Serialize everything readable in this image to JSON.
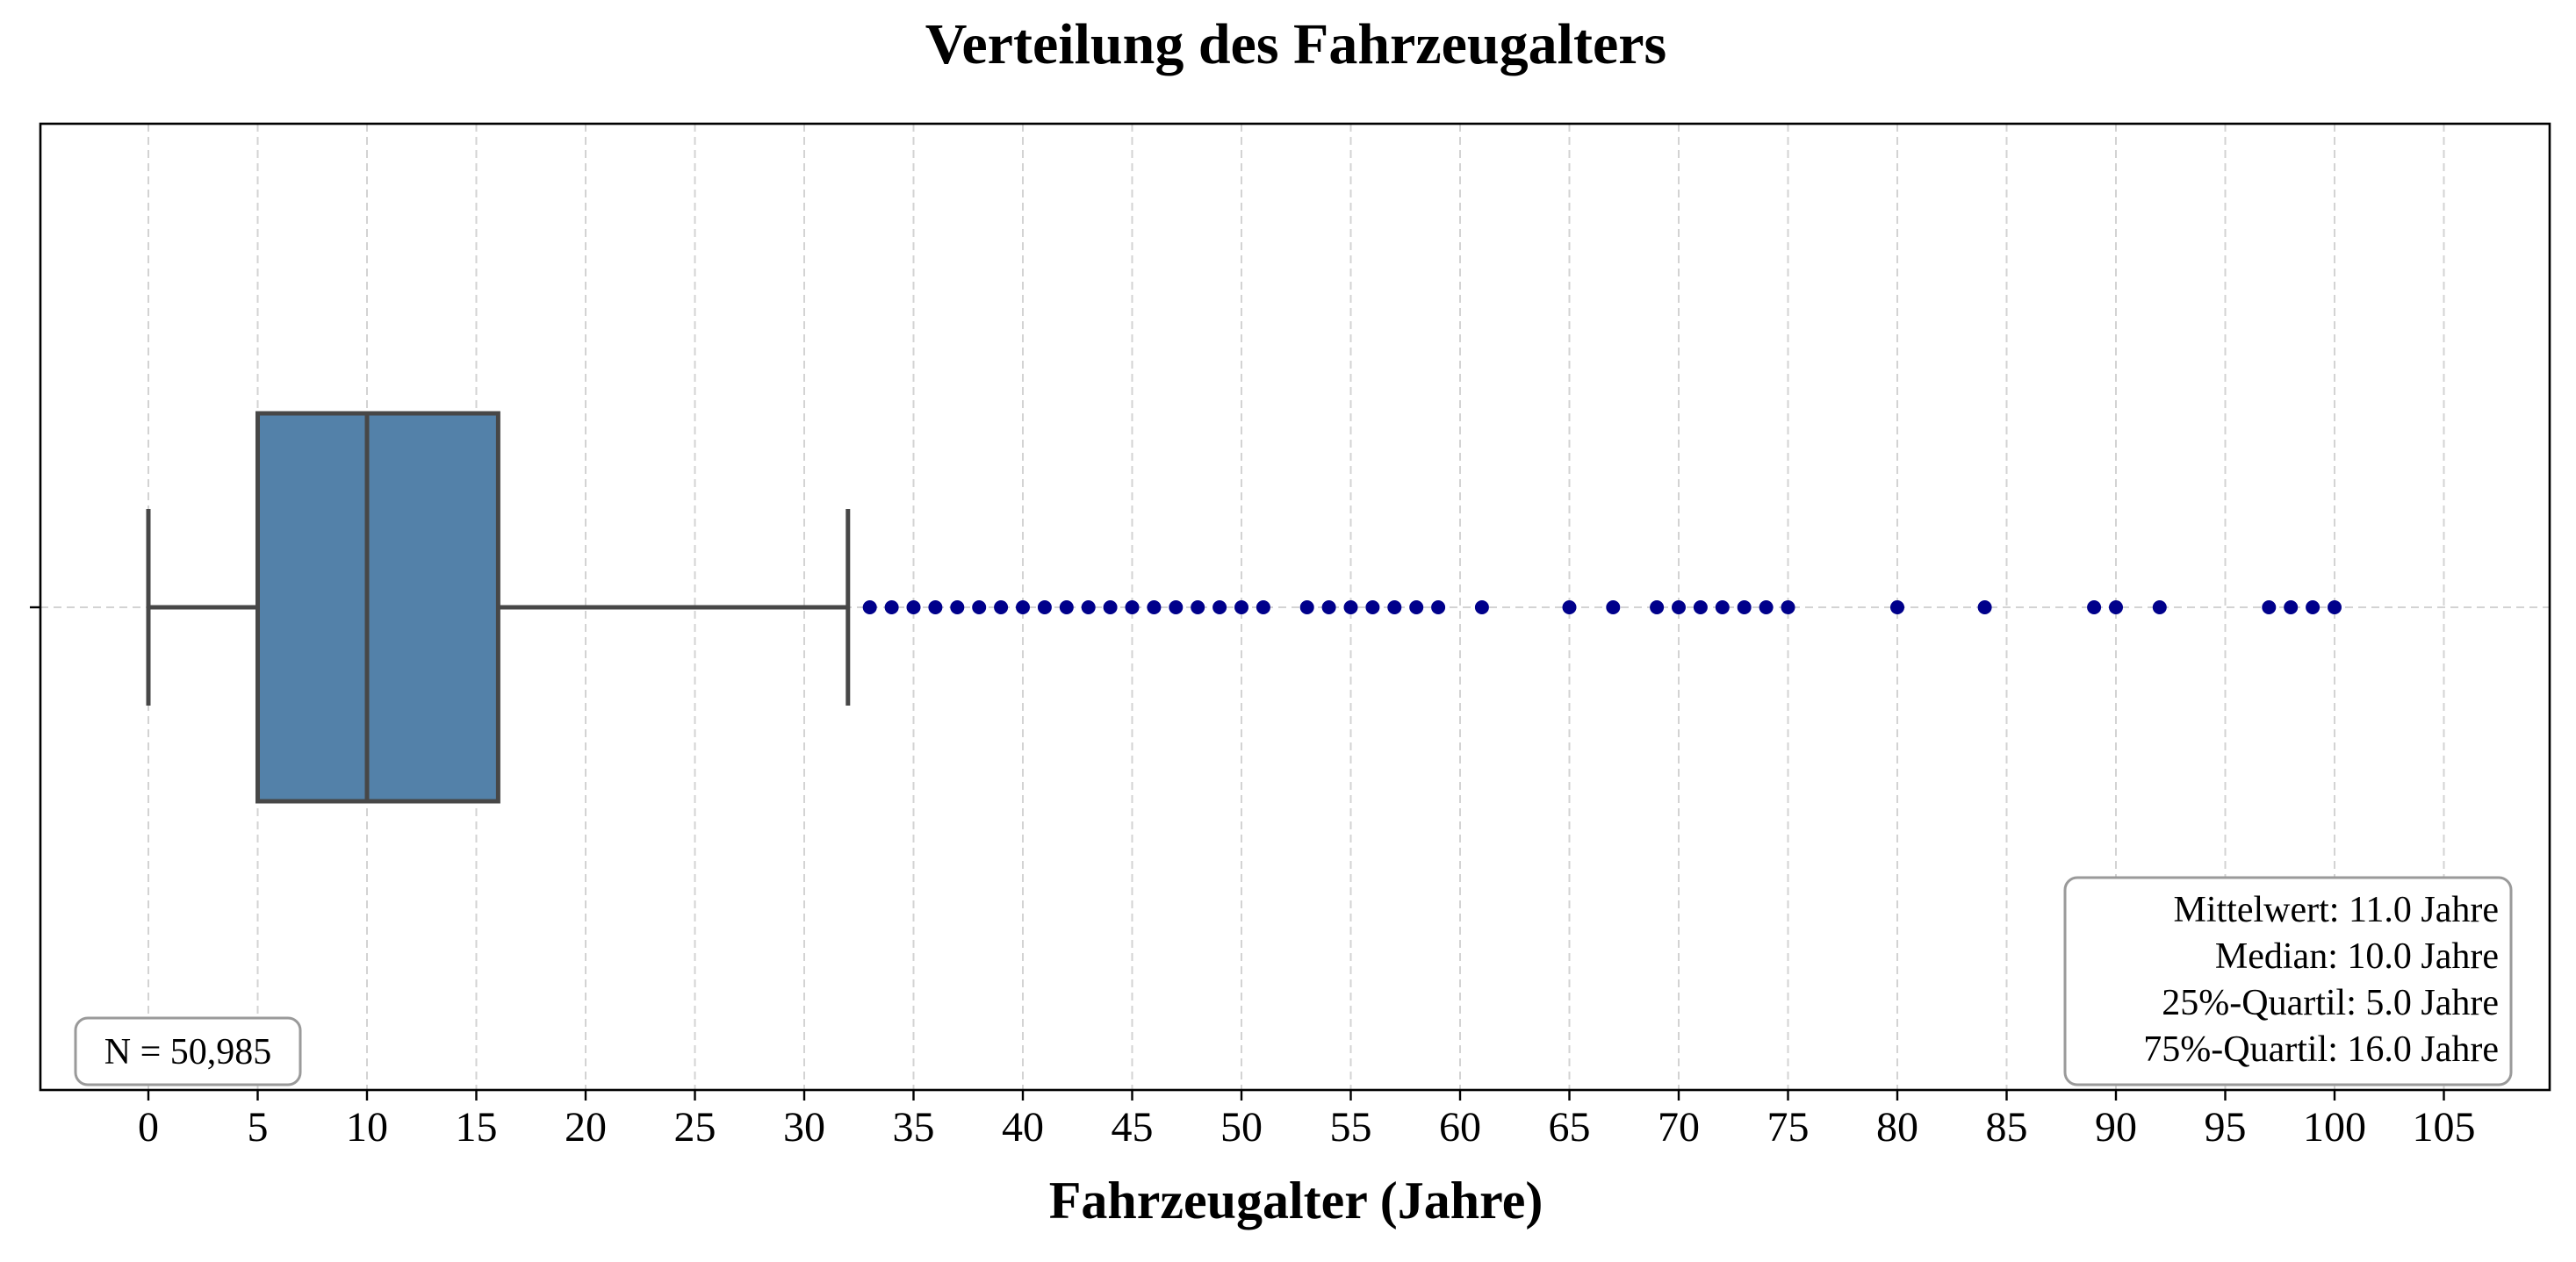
{
  "chart_data": {
    "type": "box",
    "title": "Verteilung des Fahrzeugalters",
    "xlabel": "Fahrzeugalter (Jahre)",
    "ylabel": "",
    "xlim": [
      -5,
      110
    ],
    "x_ticks": [
      0,
      5,
      10,
      15,
      20,
      25,
      30,
      35,
      40,
      45,
      50,
      55,
      60,
      65,
      70,
      75,
      80,
      85,
      90,
      95,
      100,
      105
    ],
    "grid": "vertical dashed",
    "orientation": "horizontal",
    "box": {
      "whisker_low": 0,
      "q1": 5,
      "median": 10,
      "q3": 16,
      "whisker_high": 32
    },
    "outliers": [
      33,
      34,
      35,
      36,
      37,
      38,
      39,
      40,
      41,
      42,
      43,
      44,
      45,
      46,
      47,
      48,
      49,
      50,
      51,
      53,
      54,
      55,
      56,
      57,
      58,
      59,
      61,
      65,
      67,
      69,
      70,
      71,
      72,
      73,
      74,
      75,
      80,
      84,
      89,
      90,
      92,
      97,
      98,
      99,
      100
    ],
    "colors": {
      "box_fill": "#5381a9",
      "box_line": "#474747",
      "outlier": "#00008b",
      "grid": "#d3d3d3"
    },
    "annotations": {
      "count": "N = 50,985",
      "stats": [
        "Mittelwert: 11.0 Jahre",
        "Median: 10.0 Jahre",
        "25%-Quartil: 5.0 Jahre",
        "75%-Quartil: 16.0 Jahre"
      ]
    }
  }
}
